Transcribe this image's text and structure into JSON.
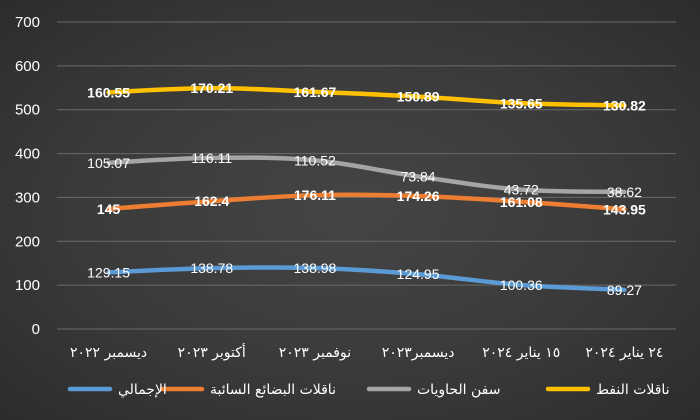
{
  "chart_data": {
    "type": "line",
    "categories": [
      "ديسمبر ٢٠٢٢",
      "أكتوبر ٢٠٢٣",
      "نوفمبر ٢٠٢٣",
      "ديسمبر٢٠٢٣",
      "١٥ يناير ٢٠٢٤",
      "٢٤ يناير ٢٠٢٤"
    ],
    "ylim": [
      0,
      700
    ],
    "yticks": [
      0,
      100,
      200,
      300,
      400,
      500,
      600,
      700
    ],
    "grid": true,
    "legend_position": "bottom",
    "series": [
      {
        "name": "الإجمالي",
        "color": "#5b9bd5",
        "values": [
          129.15,
          138.78,
          138.98,
          124.95,
          100.36,
          89.27
        ],
        "labels": [
          "129.15",
          "138.78",
          "138.98",
          "124.95",
          "100.36",
          "89.27"
        ],
        "label_color": "#ffffff",
        "label_bold": false,
        "stack_base": 0
      },
      {
        "name": "ناقلات البضائع السائبة",
        "color": "#ed7d31",
        "values": [
          145,
          162.4,
          176.11,
          174.26,
          161.08,
          143.95
        ],
        "labels": [
          "145",
          "162.4",
          "176.11",
          "174.26",
          "161.08",
          "143.95"
        ],
        "label_color": "#ffffff",
        "label_bold": true,
        "stack_base": 129
      },
      {
        "name": "سفن الحاويات",
        "color": "#a5a5a5",
        "values": [
          105.07,
          116.11,
          110.52,
          73.84,
          43.72,
          38.62
        ],
        "labels": [
          "105.07",
          "116.11",
          "110.52",
          "73.84",
          "43.72",
          "38.62"
        ],
        "label_color": "#ffffff",
        "label_bold": false,
        "stack_base": 274
      },
      {
        "name": "ناقلات النفط",
        "color": "#ffc000",
        "values": [
          160.55,
          170.21,
          161.67,
          150.89,
          135.65,
          130.82
        ],
        "labels": [
          "160.55",
          "170.21",
          "161.67",
          "150.89",
          "135.65",
          "130.82"
        ],
        "label_color": "#ffffff",
        "label_bold": true,
        "stack_base": 379
      }
    ]
  }
}
